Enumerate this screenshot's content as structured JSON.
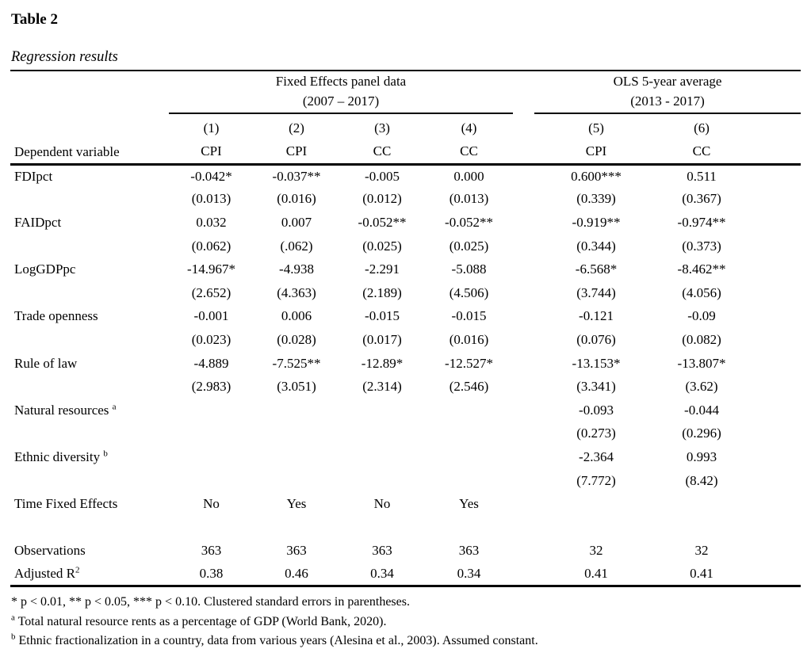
{
  "title": "Table 2",
  "subtitle": "Regression results",
  "header": {
    "dep_label": "Dependent variable",
    "group1": {
      "line1": "Fixed Effects panel data",
      "line2": "(2007 – 2017)"
    },
    "group2": {
      "line1": "OLS 5-year average",
      "line2": "(2013 - 2017)"
    },
    "col_numbers": [
      "(1)",
      "(2)",
      "(3)",
      "(4)",
      "(5)",
      "(6)"
    ],
    "col_depvars": [
      "CPI",
      "CPI",
      "CC",
      "CC",
      "CPI",
      "CC"
    ]
  },
  "table": {
    "rows": [
      {
        "label": "FDIpct",
        "values": [
          "-0.042*",
          "-0.037**",
          "-0.005",
          "0.000",
          "0.600***",
          "0.511"
        ]
      },
      {
        "label": "",
        "values": [
          "(0.013)",
          "(0.016)",
          "(0.012)",
          "(0.013)",
          "(0.339)",
          "(0.367)"
        ]
      },
      {
        "label": "FAIDpct",
        "values": [
          "0.032",
          "0.007",
          "-0.052**",
          "-0.052**",
          "-0.919**",
          "-0.974**"
        ]
      },
      {
        "label": "",
        "values": [
          "(0.062)",
          "(.062)",
          "(0.025)",
          "(0.025)",
          "(0.344)",
          "(0.373)"
        ]
      },
      {
        "label": "LogGDPpc",
        "values": [
          "-14.967*",
          "-4.938",
          "-2.291",
          "-5.088",
          "-6.568*",
          "-8.462**"
        ]
      },
      {
        "label": "",
        "values": [
          "(2.652)",
          "(4.363)",
          "(2.189)",
          "(4.506)",
          "(3.744)",
          "(4.056)"
        ]
      },
      {
        "label": "Trade openness",
        "values": [
          "-0.001",
          "0.006",
          "-0.015",
          "-0.015",
          "-0.121",
          "-0.09"
        ]
      },
      {
        "label": "",
        "values": [
          "(0.023)",
          "(0.028)",
          "(0.017)",
          "(0.016)",
          "(0.076)",
          "(0.082)"
        ]
      },
      {
        "label": "Rule of law",
        "values": [
          "-4.889",
          "-7.525**",
          "-12.89*",
          "-12.527*",
          "-13.153*",
          "-13.807*"
        ]
      },
      {
        "label": "",
        "values": [
          "(2.983)",
          "(3.051)",
          "(2.314)",
          "(2.546)",
          "(3.341)",
          "(3.62)"
        ]
      },
      {
        "label": "Natural resources ",
        "sup": "a",
        "values": [
          "",
          "",
          "",
          "",
          "-0.093",
          "-0.044"
        ]
      },
      {
        "label": "",
        "values": [
          "",
          "",
          "",
          "",
          "(0.273)",
          "(0.296)"
        ]
      },
      {
        "label": "Ethnic diversity ",
        "sup": "b",
        "values": [
          "",
          "",
          "",
          "",
          "-2.364",
          "0.993"
        ]
      },
      {
        "label": "",
        "values": [
          "",
          "",
          "",
          "",
          "(7.772)",
          "(8.42)"
        ]
      },
      {
        "label": "Time Fixed Effects",
        "values": [
          "No",
          "Yes",
          "No",
          "Yes",
          "",
          ""
        ]
      },
      {
        "label": "",
        "values": [
          "",
          "",
          "",
          "",
          "",
          ""
        ]
      },
      {
        "label": "Observations",
        "values": [
          "363",
          "363",
          "363",
          "363",
          "32",
          "32"
        ]
      },
      {
        "label": "Adjusted R",
        "sup": "2",
        "values": [
          "0.38",
          "0.46",
          "0.34",
          "0.34",
          "0.41",
          "0.41"
        ]
      }
    ]
  },
  "footnotes": {
    "significance": "* p < 0.01, ** p < 0.05, *** p < 0.10. Clustered standard errors in parentheses.",
    "a_marker": "a",
    "a_text": "Total natural resource rents as a percentage of GDP (World Bank, 2020).",
    "b_marker": "b",
    "b_text": "Ethnic fractionalization in a country, data from various years (Alesina et al., 2003). Assumed constant."
  }
}
